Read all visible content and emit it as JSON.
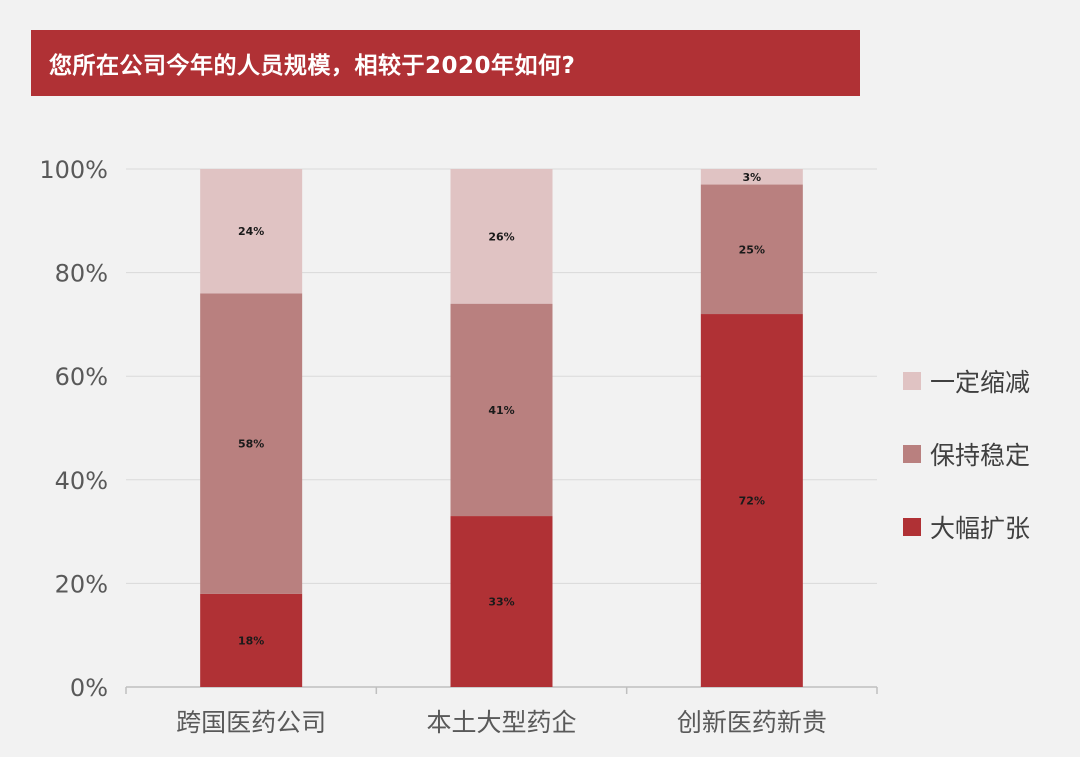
{
  "chart_data": {
    "type": "bar",
    "stacked": true,
    "title": "您所在公司今年的人员规模，相较于2020年如何?",
    "xlabel": "",
    "ylabel": "",
    "ylim": [
      0,
      100
    ],
    "y_ticks": [
      "0%",
      "20%",
      "40%",
      "60%",
      "80%",
      "100%"
    ],
    "grid": true,
    "legend_position": "right",
    "categories": [
      "跨国医药公司",
      "本土大型药企",
      "创新医药新贵"
    ],
    "series": [
      {
        "name": "大幅扩张",
        "color": "#b03135",
        "values": [
          18,
          33,
          72
        ],
        "labels": [
          "18%",
          "33%",
          "72%"
        ]
      },
      {
        "name": "保持稳定",
        "color": "#b9807f",
        "values": [
          58,
          41,
          25
        ],
        "labels": [
          "58%",
          "41%",
          "25%"
        ]
      },
      {
        "name": "一定缩减",
        "color": "#e0c3c3",
        "values": [
          24,
          26,
          3
        ],
        "labels": [
          "24%",
          "26%",
          "3%"
        ]
      }
    ],
    "legend_order": [
      "一定缩减",
      "保持稳定",
      "大幅扩张"
    ]
  }
}
